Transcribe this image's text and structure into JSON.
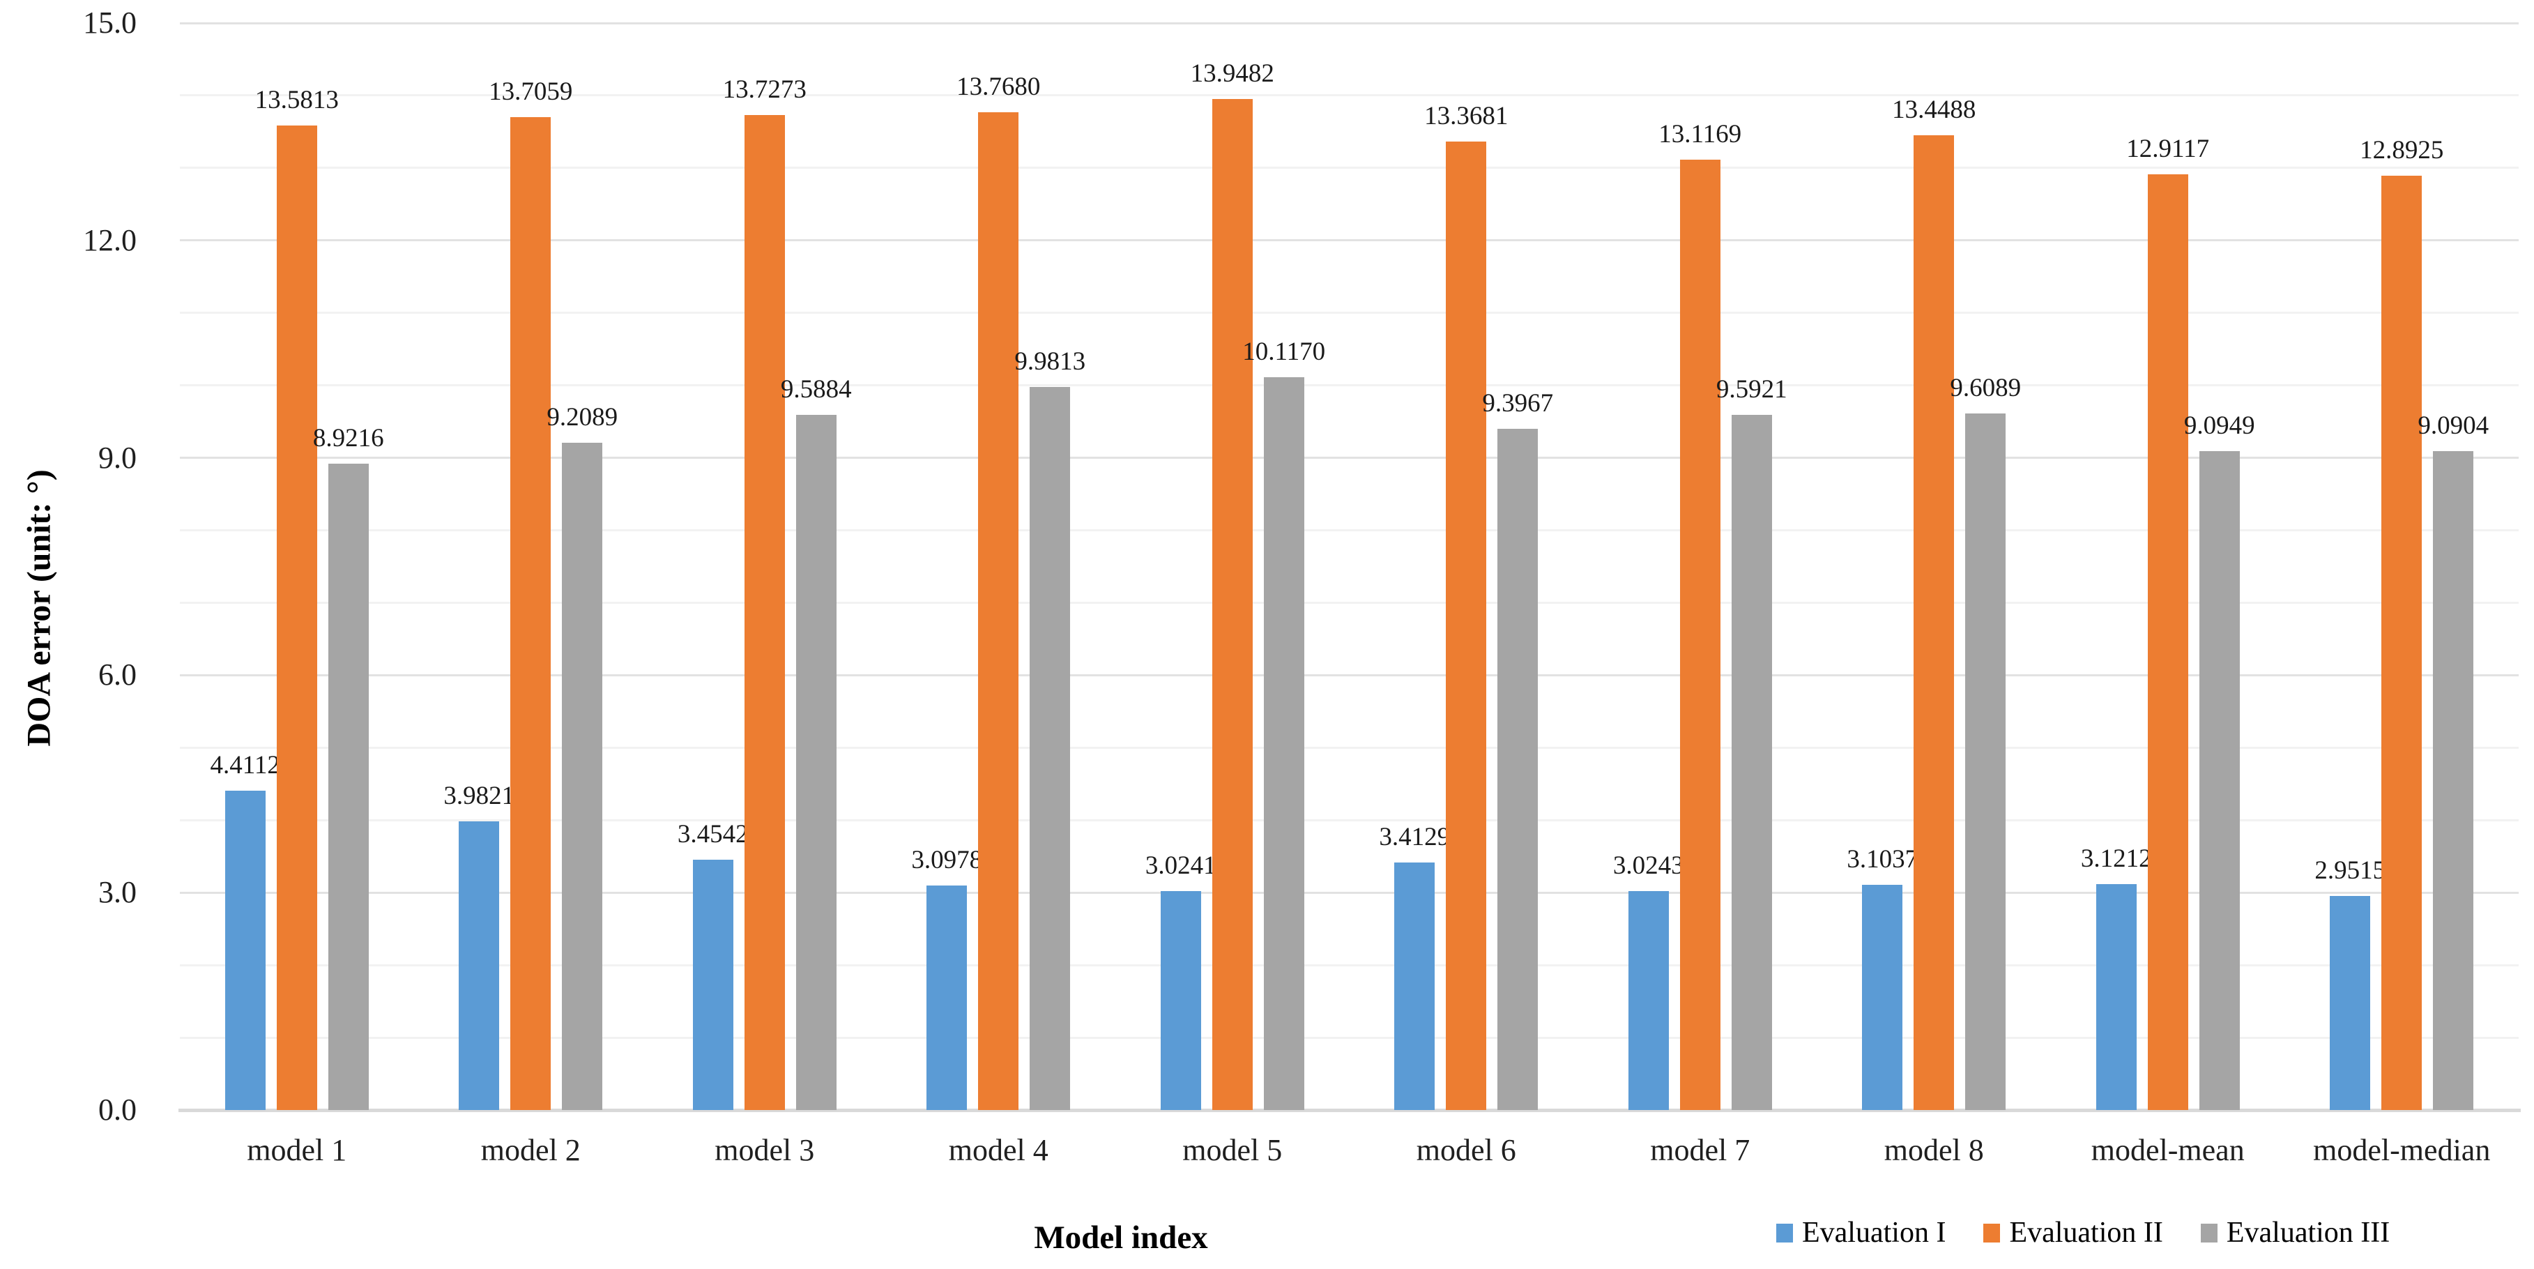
{
  "chart_data": {
    "type": "bar",
    "title": "",
    "xlabel": "Model index",
    "ylabel": "DOA error (unit: °)",
    "ylim": [
      0,
      15
    ],
    "ytick_values": [
      0,
      3,
      6,
      9,
      12,
      15
    ],
    "ytick_labels": [
      "0.0",
      "3.0",
      "6.0",
      "9.0",
      "12.0",
      "15.0"
    ],
    "minor_grid_step": 1,
    "grid": true,
    "legend_position": "bottom-right",
    "categories": [
      "model 1",
      "model 2",
      "model 3",
      "model 4",
      "model 5",
      "model 6",
      "model 7",
      "model 8",
      "model-mean",
      "model-median"
    ],
    "series": [
      {
        "name": "Evaluation I",
        "color": "#5B9BD5",
        "values": [
          4.4112,
          3.9821,
          3.4542,
          3.0978,
          3.0241,
          3.4129,
          3.0243,
          3.1037,
          3.1212,
          2.9515
        ],
        "labels": [
          "4.4112",
          "3.9821",
          "3.4542",
          "3.0978",
          "3.0241",
          "3.4129",
          "3.0243",
          "3.1037",
          "3.1212",
          "2.9515"
        ]
      },
      {
        "name": "Evaluation II",
        "color": "#ED7D31",
        "values": [
          13.5813,
          13.7059,
          13.7273,
          13.768,
          13.9482,
          13.3681,
          13.1169,
          13.4488,
          12.9117,
          12.8925
        ],
        "labels": [
          "13.5813",
          "13.7059",
          "13.7273",
          "13.7680",
          "13.9482",
          "13.3681",
          "13.1169",
          "13.4488",
          "12.9117",
          "12.8925"
        ]
      },
      {
        "name": "Evaluation III",
        "color": "#A5A5A5",
        "values": [
          8.9216,
          9.2089,
          9.5884,
          9.9813,
          10.117,
          9.3967,
          9.5921,
          9.6089,
          9.0949,
          9.0904
        ],
        "labels": [
          "8.9216",
          "9.2089",
          "9.5884",
          "9.9813",
          "10.1170",
          "9.3967",
          "9.5921",
          "9.6089",
          "9.0949",
          "9.0904"
        ]
      }
    ]
  }
}
